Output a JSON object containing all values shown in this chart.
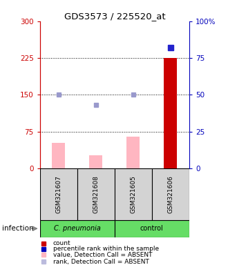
{
  "title": "GDS3573 / 225520_at",
  "samples": [
    "GSM321607",
    "GSM321608",
    "GSM321605",
    "GSM321606"
  ],
  "bar_values": [
    52,
    27,
    65,
    225
  ],
  "bar_colors": [
    "#FFB6C1",
    "#FFB6C1",
    "#FFB6C1",
    "#CC0000"
  ],
  "rank_values": [
    50,
    43,
    50,
    82
  ],
  "rank_colors": [
    "#9999CC",
    "#9999CC",
    "#9999CC",
    "#2222CC"
  ],
  "rank_sizes": [
    4,
    5,
    4,
    6
  ],
  "rank_bright": [
    false,
    false,
    false,
    true
  ],
  "ylim_left": [
    0,
    300
  ],
  "ylim_right": [
    0,
    100
  ],
  "yticks_left": [
    0,
    75,
    150,
    225,
    300
  ],
  "yticks_right": [
    0,
    25,
    50,
    75,
    100
  ],
  "ytick_labels_left": [
    "0",
    "75",
    "150",
    "225",
    "300"
  ],
  "ytick_labels_right": [
    "0",
    "25",
    "50",
    "75",
    "100%"
  ],
  "hlines": [
    75,
    150,
    225
  ],
  "left_axis_color": "#CC0000",
  "right_axis_color": "#0000BB",
  "bar_width": 0.35,
  "sample_box_color": "#D3D3D3",
  "group1_label": "C. pneumonia",
  "group2_label": "control",
  "group_color": "#66DD66",
  "infection_label": "infection",
  "legend_colors": [
    "#CC0000",
    "#0000BB",
    "#FFB6C1",
    "#BBBBDD"
  ],
  "legend_labels": [
    "count",
    "percentile rank within the sample",
    "value, Detection Call = ABSENT",
    "rank, Detection Call = ABSENT"
  ]
}
